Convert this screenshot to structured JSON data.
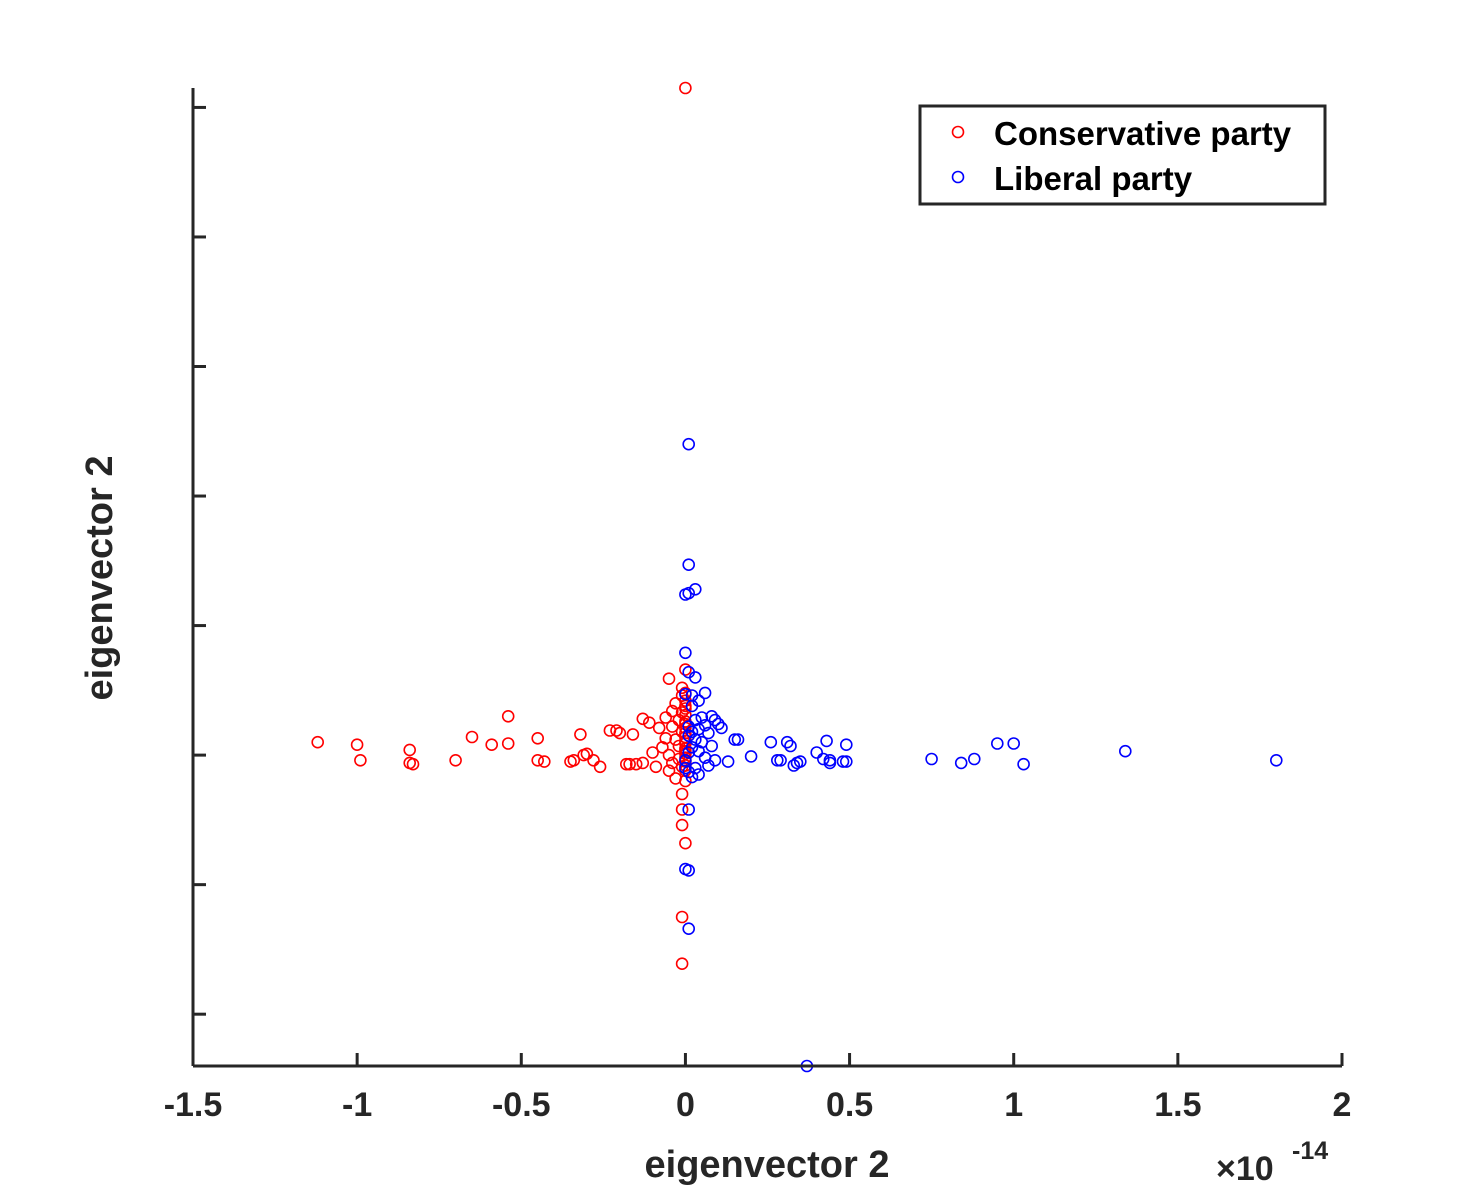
{
  "chart_data": {
    "type": "scatter",
    "title": "",
    "xlabel": "eigenvector 2",
    "ylabel": "eigenvector 2",
    "x_exponent": {
      "base": "×10",
      "power": "-14"
    },
    "xlim": [
      -1.5,
      2
    ],
    "ylim": [
      -2.4,
      5.15
    ],
    "x_ticks": [
      -1.5,
      -1,
      -0.5,
      0,
      0.5,
      1,
      1.5,
      2
    ],
    "x_tick_labels": [
      "-1.5",
      "-1",
      "-0.5",
      "0",
      "0.5",
      "1",
      "1.5",
      "2"
    ],
    "y_ticks": [
      -2,
      -1,
      0,
      1,
      2,
      3,
      4,
      5
    ],
    "y_tick_labels": [],
    "grid": false,
    "legend": {
      "placement": "top-right",
      "entries": [
        "Conservative party",
        "Liberal party"
      ]
    },
    "series": [
      {
        "name": "Conservative party",
        "color": "#ff0000",
        "marker": "open-circle",
        "points": [
          [
            -1.12,
            0.1
          ],
          [
            -1.0,
            0.08
          ],
          [
            -0.99,
            -0.04
          ],
          [
            -0.84,
            0.04
          ],
          [
            -0.84,
            -0.06
          ],
          [
            -0.83,
            -0.07
          ],
          [
            -0.7,
            -0.04
          ],
          [
            -0.65,
            0.14
          ],
          [
            -0.59,
            0.08
          ],
          [
            -0.54,
            0.3
          ],
          [
            -0.54,
            0.09
          ],
          [
            -0.45,
            0.13
          ],
          [
            -0.45,
            -0.04
          ],
          [
            -0.43,
            -0.05
          ],
          [
            -0.35,
            -0.05
          ],
          [
            -0.34,
            -0.04
          ],
          [
            -0.32,
            0.16
          ],
          [
            -0.31,
            0.0
          ],
          [
            -0.3,
            0.01
          ],
          [
            -0.28,
            -0.04
          ],
          [
            -0.26,
            -0.09
          ],
          [
            -0.23,
            0.19
          ],
          [
            -0.21,
            0.19
          ],
          [
            -0.2,
            0.17
          ],
          [
            -0.18,
            -0.07
          ],
          [
            -0.17,
            -0.07
          ],
          [
            -0.16,
            0.16
          ],
          [
            -0.15,
            -0.07
          ],
          [
            -0.13,
            -0.06
          ],
          [
            -0.13,
            0.28
          ],
          [
            -0.11,
            0.25
          ],
          [
            -0.1,
            0.02
          ],
          [
            -0.09,
            -0.09
          ],
          [
            -0.08,
            0.21
          ],
          [
            -0.07,
            0.06
          ],
          [
            -0.06,
            0.29
          ],
          [
            -0.06,
            0.13
          ],
          [
            -0.05,
            0.0
          ],
          [
            -0.05,
            -0.12
          ],
          [
            -0.05,
            0.59
          ],
          [
            -0.04,
            0.34
          ],
          [
            -0.04,
            0.22
          ],
          [
            -0.04,
            -0.06
          ],
          [
            -0.03,
            0.4
          ],
          [
            -0.03,
            0.12
          ],
          [
            -0.03,
            -0.18
          ],
          [
            -0.02,
            0.27
          ],
          [
            -0.02,
            0.07
          ],
          [
            -0.02,
            -0.03
          ],
          [
            -0.01,
            0.46
          ],
          [
            -0.01,
            0.33
          ],
          [
            -0.01,
            0.18
          ],
          [
            -0.01,
            -0.09
          ],
          [
            -0.01,
            -0.3
          ],
          [
            -0.01,
            0.52
          ],
          [
            -0.01,
            -0.42
          ],
          [
            0.0,
            0.66
          ],
          [
            0.0,
            0.48
          ],
          [
            0.0,
            0.42
          ],
          [
            0.0,
            0.38
          ],
          [
            0.0,
            0.36
          ],
          [
            0.0,
            0.31
          ],
          [
            0.0,
            0.26
          ],
          [
            0.0,
            0.24
          ],
          [
            0.0,
            0.21
          ],
          [
            0.0,
            0.17
          ],
          [
            0.0,
            0.14
          ],
          [
            0.0,
            0.11
          ],
          [
            0.0,
            0.09
          ],
          [
            0.0,
            0.05
          ],
          [
            0.0,
            0.03
          ],
          [
            0.0,
            0.01
          ],
          [
            0.0,
            -0.02
          ],
          [
            0.0,
            -0.05
          ],
          [
            0.0,
            -0.08
          ],
          [
            0.0,
            -0.12
          ],
          [
            0.0,
            -0.2
          ],
          [
            -0.01,
            -0.54
          ],
          [
            0.0,
            -0.68
          ],
          [
            -0.01,
            -1.25
          ],
          [
            -0.01,
            -1.61
          ],
          [
            0.0,
            5.15
          ]
        ]
      },
      {
        "name": "Liberal party",
        "color": "#0000ff",
        "marker": "open-circle",
        "points": [
          [
            0.01,
            2.4
          ],
          [
            0.01,
            1.47
          ],
          [
            0.03,
            1.28
          ],
          [
            0.01,
            1.25
          ],
          [
            0.0,
            1.24
          ],
          [
            0.0,
            0.79
          ],
          [
            0.03,
            0.6
          ],
          [
            0.01,
            0.64
          ],
          [
            0.06,
            0.48
          ],
          [
            0.0,
            0.47
          ],
          [
            0.02,
            0.46
          ],
          [
            0.04,
            0.42
          ],
          [
            0.02,
            0.38
          ],
          [
            0.08,
            0.3
          ],
          [
            0.05,
            0.29
          ],
          [
            0.09,
            0.27
          ],
          [
            0.03,
            0.27
          ],
          [
            0.1,
            0.24
          ],
          [
            0.06,
            0.23
          ],
          [
            0.01,
            0.22
          ],
          [
            0.11,
            0.21
          ],
          [
            0.04,
            0.2
          ],
          [
            0.02,
            0.18
          ],
          [
            0.07,
            0.17
          ],
          [
            0.01,
            0.15
          ],
          [
            0.15,
            0.12
          ],
          [
            0.16,
            0.12
          ],
          [
            0.03,
            0.12
          ],
          [
            0.05,
            0.1
          ],
          [
            0.08,
            0.07
          ],
          [
            0.02,
            0.06
          ],
          [
            0.04,
            0.03
          ],
          [
            0.01,
            0.02
          ],
          [
            0.2,
            -0.01
          ],
          [
            0.13,
            -0.05
          ],
          [
            0.09,
            -0.04
          ],
          [
            0.06,
            -0.02
          ],
          [
            0.07,
            -0.08
          ],
          [
            0.03,
            -0.1
          ],
          [
            0.01,
            -0.13
          ],
          [
            0.04,
            -0.15
          ],
          [
            0.02,
            -0.17
          ],
          [
            0.0,
            -0.1
          ],
          [
            0.0,
            -0.04
          ],
          [
            0.26,
            0.1
          ],
          [
            0.28,
            -0.04
          ],
          [
            0.29,
            -0.04
          ],
          [
            0.31,
            0.1
          ],
          [
            0.32,
            0.07
          ],
          [
            0.33,
            -0.08
          ],
          [
            0.34,
            -0.06
          ],
          [
            0.35,
            -0.05
          ],
          [
            0.4,
            0.02
          ],
          [
            0.42,
            -0.03
          ],
          [
            0.43,
            0.11
          ],
          [
            0.44,
            -0.04
          ],
          [
            0.44,
            -0.06
          ],
          [
            0.48,
            -0.05
          ],
          [
            0.49,
            0.08
          ],
          [
            0.49,
            -0.05
          ],
          [
            0.75,
            -0.03
          ],
          [
            0.84,
            -0.06
          ],
          [
            0.88,
            -0.03
          ],
          [
            0.95,
            0.09
          ],
          [
            1.0,
            0.09
          ],
          [
            1.03,
            -0.07
          ],
          [
            1.34,
            0.03
          ],
          [
            1.8,
            -0.04
          ],
          [
            0.01,
            -0.42
          ],
          [
            0.0,
            -0.88
          ],
          [
            0.01,
            -0.89
          ],
          [
            0.01,
            -1.34
          ],
          [
            0.37,
            -2.4
          ]
        ]
      }
    ]
  }
}
